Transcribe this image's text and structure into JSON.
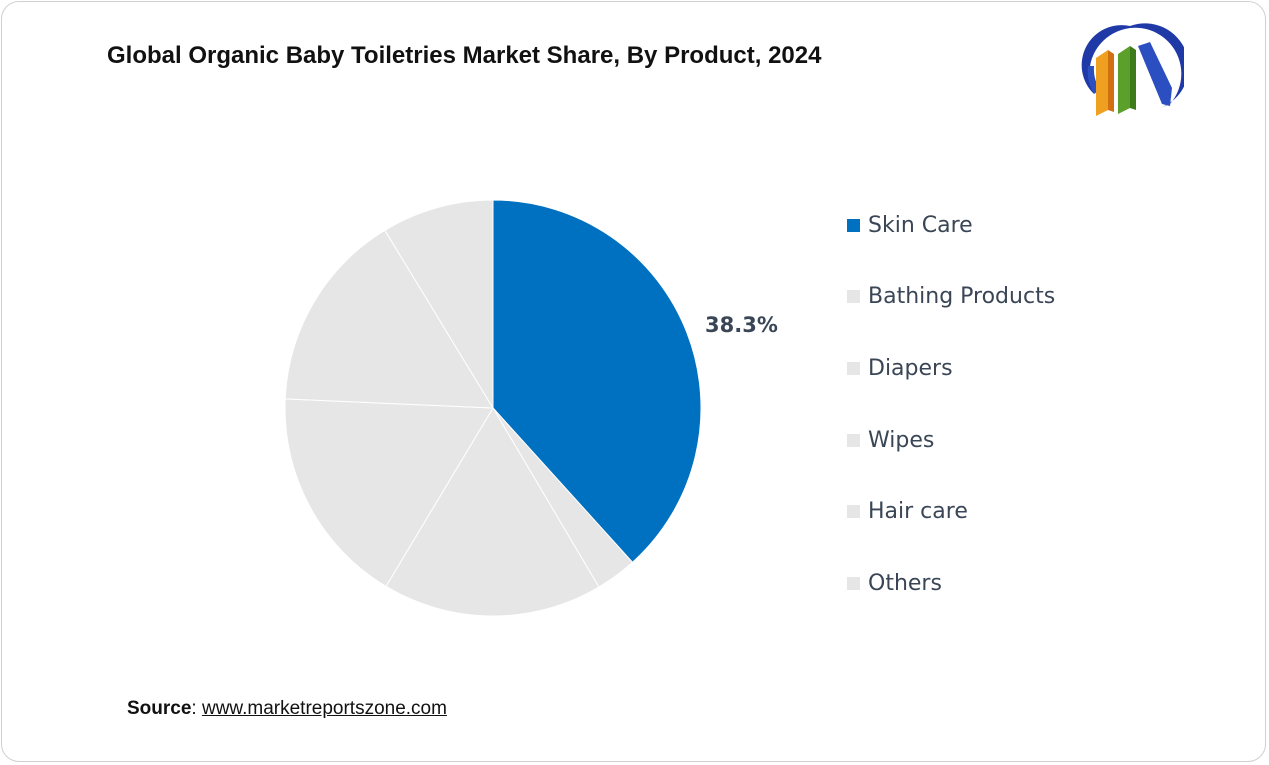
{
  "title": "Global Organic Baby Toiletries Market Share, By Product, 2024",
  "source": {
    "label": "Source",
    "separator": ": ",
    "url_text": "www.marketreportszone.com"
  },
  "colors": {
    "skin_care": "#0070c0",
    "other_segments": "#e6e6e6",
    "slice_border": "#ffffff",
    "label_text": "#3a4656"
  },
  "logo": {
    "icon": "market-reports-zone-logo-icon"
  },
  "chart_data": {
    "type": "pie",
    "title": "Global Organic Baby Toiletries Market Share, By Product, 2024",
    "categories": [
      "Skin Care",
      "Bathing Products",
      "Diapers",
      "Wipes",
      "Hair care",
      "Others"
    ],
    "values": [
      38.3,
      3.2,
      17.1,
      17.1,
      15.6,
      8.7
    ],
    "data_labels": [
      "38.3%",
      "",
      "",
      "",
      "",
      ""
    ],
    "slice_colors": [
      "#0070c0",
      "#e6e6e6",
      "#e6e6e6",
      "#e6e6e6",
      "#e6e6e6",
      "#e6e6e6"
    ],
    "legend": {
      "position": "right",
      "items": [
        {
          "label": "Skin Care",
          "color": "#0070c0"
        },
        {
          "label": "Bathing Products",
          "color": "#e6e6e6"
        },
        {
          "label": "Diapers",
          "color": "#e6e6e6"
        },
        {
          "label": "Wipes",
          "color": "#e6e6e6"
        },
        {
          "label": "Hair care",
          "color": "#e6e6e6"
        },
        {
          "label": "Others",
          "color": "#e6e6e6"
        }
      ]
    }
  }
}
